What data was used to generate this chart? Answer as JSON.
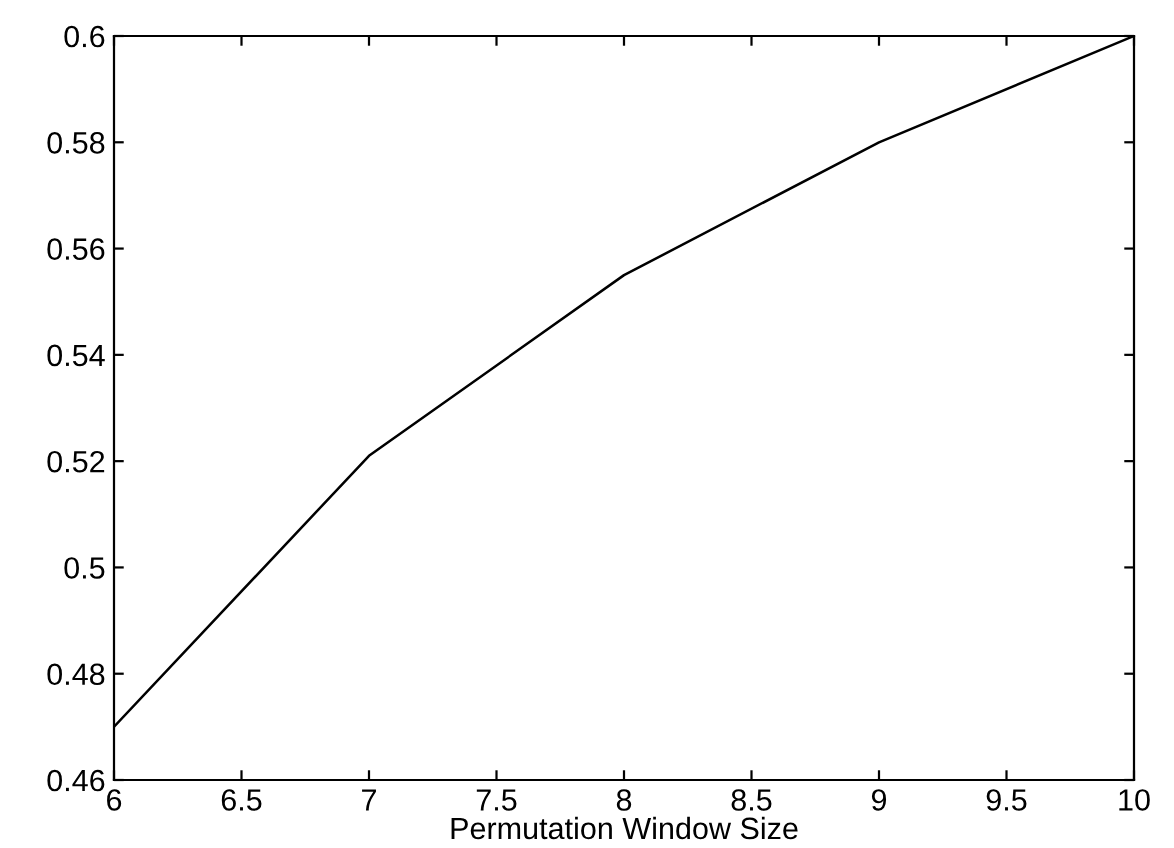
{
  "chart_data": {
    "type": "line",
    "xlabel": "Permutation Window Size",
    "x": [
      6,
      7,
      8,
      9,
      10
    ],
    "series": [
      {
        "color": "#000000",
        "values": [
          0.47,
          0.521,
          0.555,
          0.58,
          0.6
        ]
      }
    ],
    "xlim": [
      6,
      10
    ],
    "xticks": [
      6,
      6.5,
      7,
      7.5,
      8,
      8.5,
      9,
      9.5,
      10
    ],
    "ylim": [
      0.46,
      0.6
    ],
    "yticks": [
      0.46,
      0.48,
      0.5,
      0.52,
      0.54,
      0.56,
      0.58,
      0.6
    ],
    "grid": false,
    "legend": false
  }
}
